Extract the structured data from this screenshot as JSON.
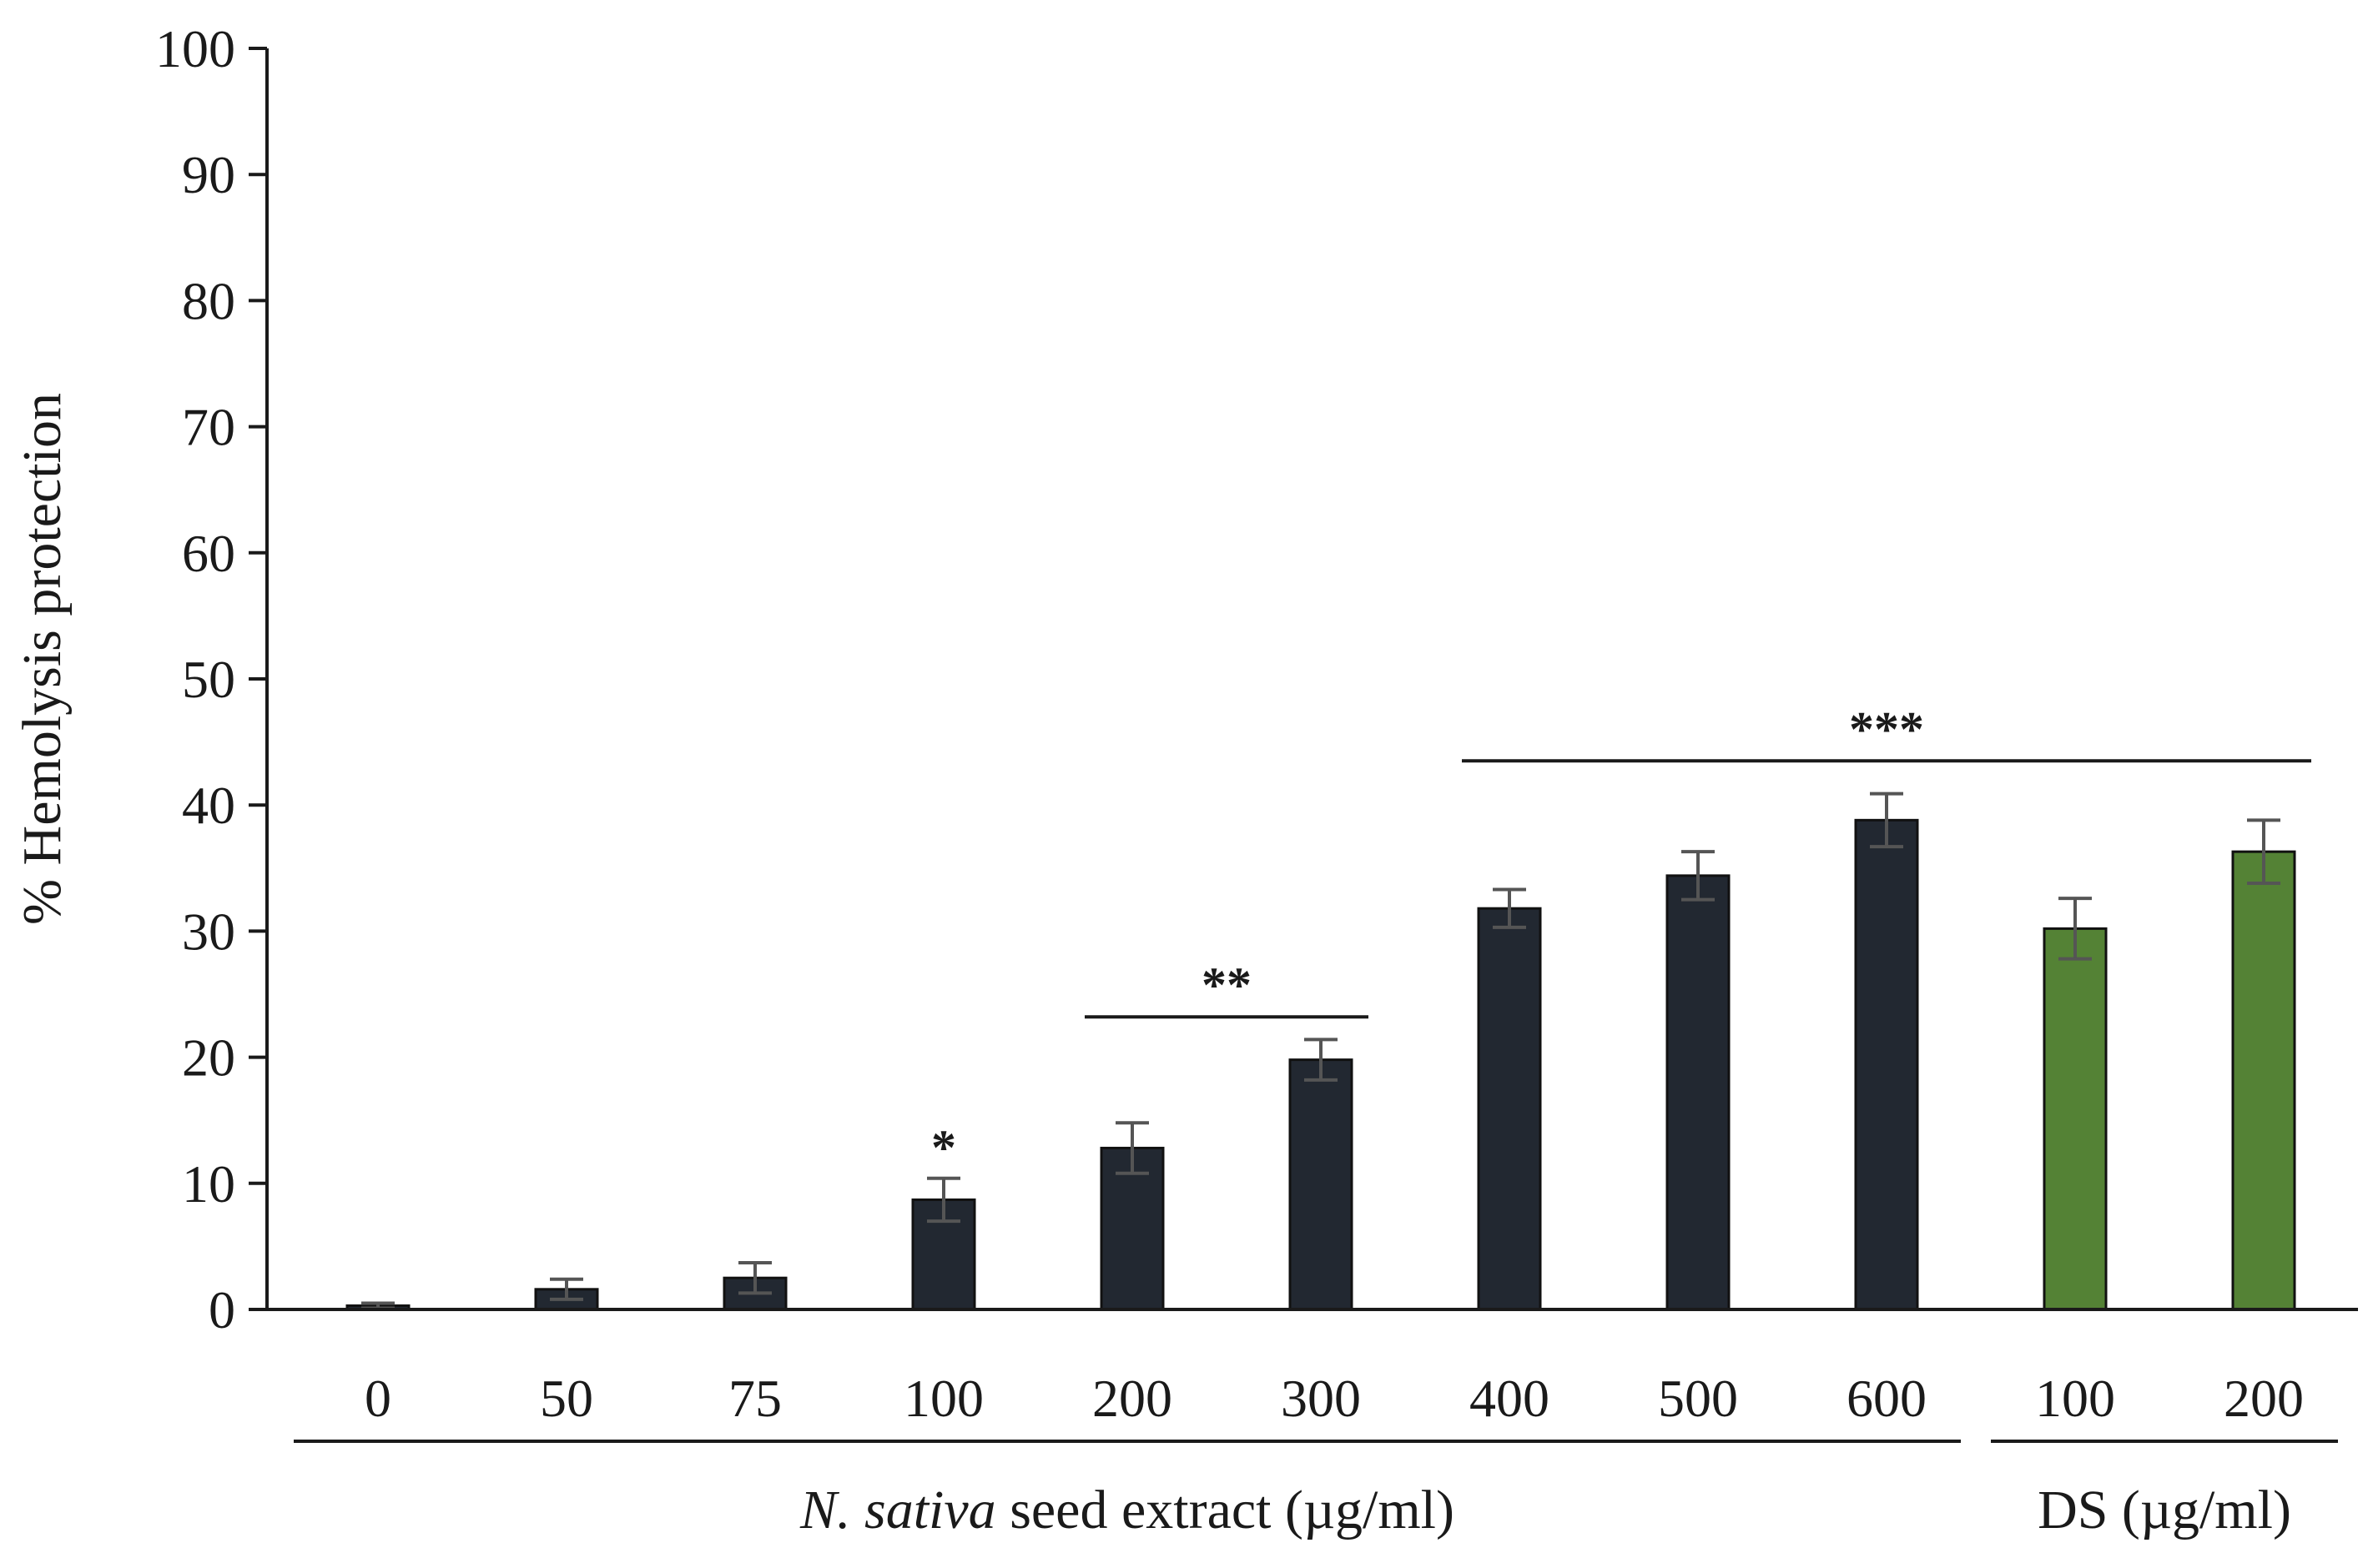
{
  "chart_data": {
    "type": "bar",
    "ylabel": "% Hemolysis protection",
    "ylim": [
      0,
      100
    ],
    "yticks": [
      0,
      10,
      20,
      30,
      40,
      50,
      60,
      70,
      80,
      90,
      100
    ],
    "grid": false,
    "categories": [
      "0",
      "50",
      "75",
      "100",
      "200",
      "300",
      "400",
      "500",
      "600",
      "100",
      "200"
    ],
    "values": [
      0.3,
      1.6,
      2.5,
      8.7,
      12.8,
      19.8,
      31.8,
      34.4,
      38.8,
      30.2,
      36.3
    ],
    "errors": [
      0.2,
      0.8,
      1.2,
      1.7,
      2.0,
      1.6,
      1.5,
      1.9,
      2.1,
      2.4,
      2.5
    ],
    "bar_colors": [
      "#222831",
      "#222831",
      "#222831",
      "#222831",
      "#222831",
      "#222831",
      "#222831",
      "#222831",
      "#222831",
      "#548235",
      "#548235"
    ],
    "groups": [
      {
        "label_plain": "seed extract (µg/ml)",
        "label_italic": "N. sativa",
        "start": 0,
        "end": 8
      },
      {
        "label_plain": "DS (µg/ml)",
        "label_italic": "",
        "start": 9,
        "end": 10
      }
    ],
    "significance": [
      {
        "label": "*",
        "start": 3,
        "end": 3,
        "y": 13.5,
        "line": false
      },
      {
        "label": "**",
        "start": 4,
        "end": 5,
        "y": 23.2,
        "line": true
      },
      {
        "label": "***",
        "start": 6,
        "end": 10,
        "y": 43.5,
        "line": true
      }
    ]
  }
}
